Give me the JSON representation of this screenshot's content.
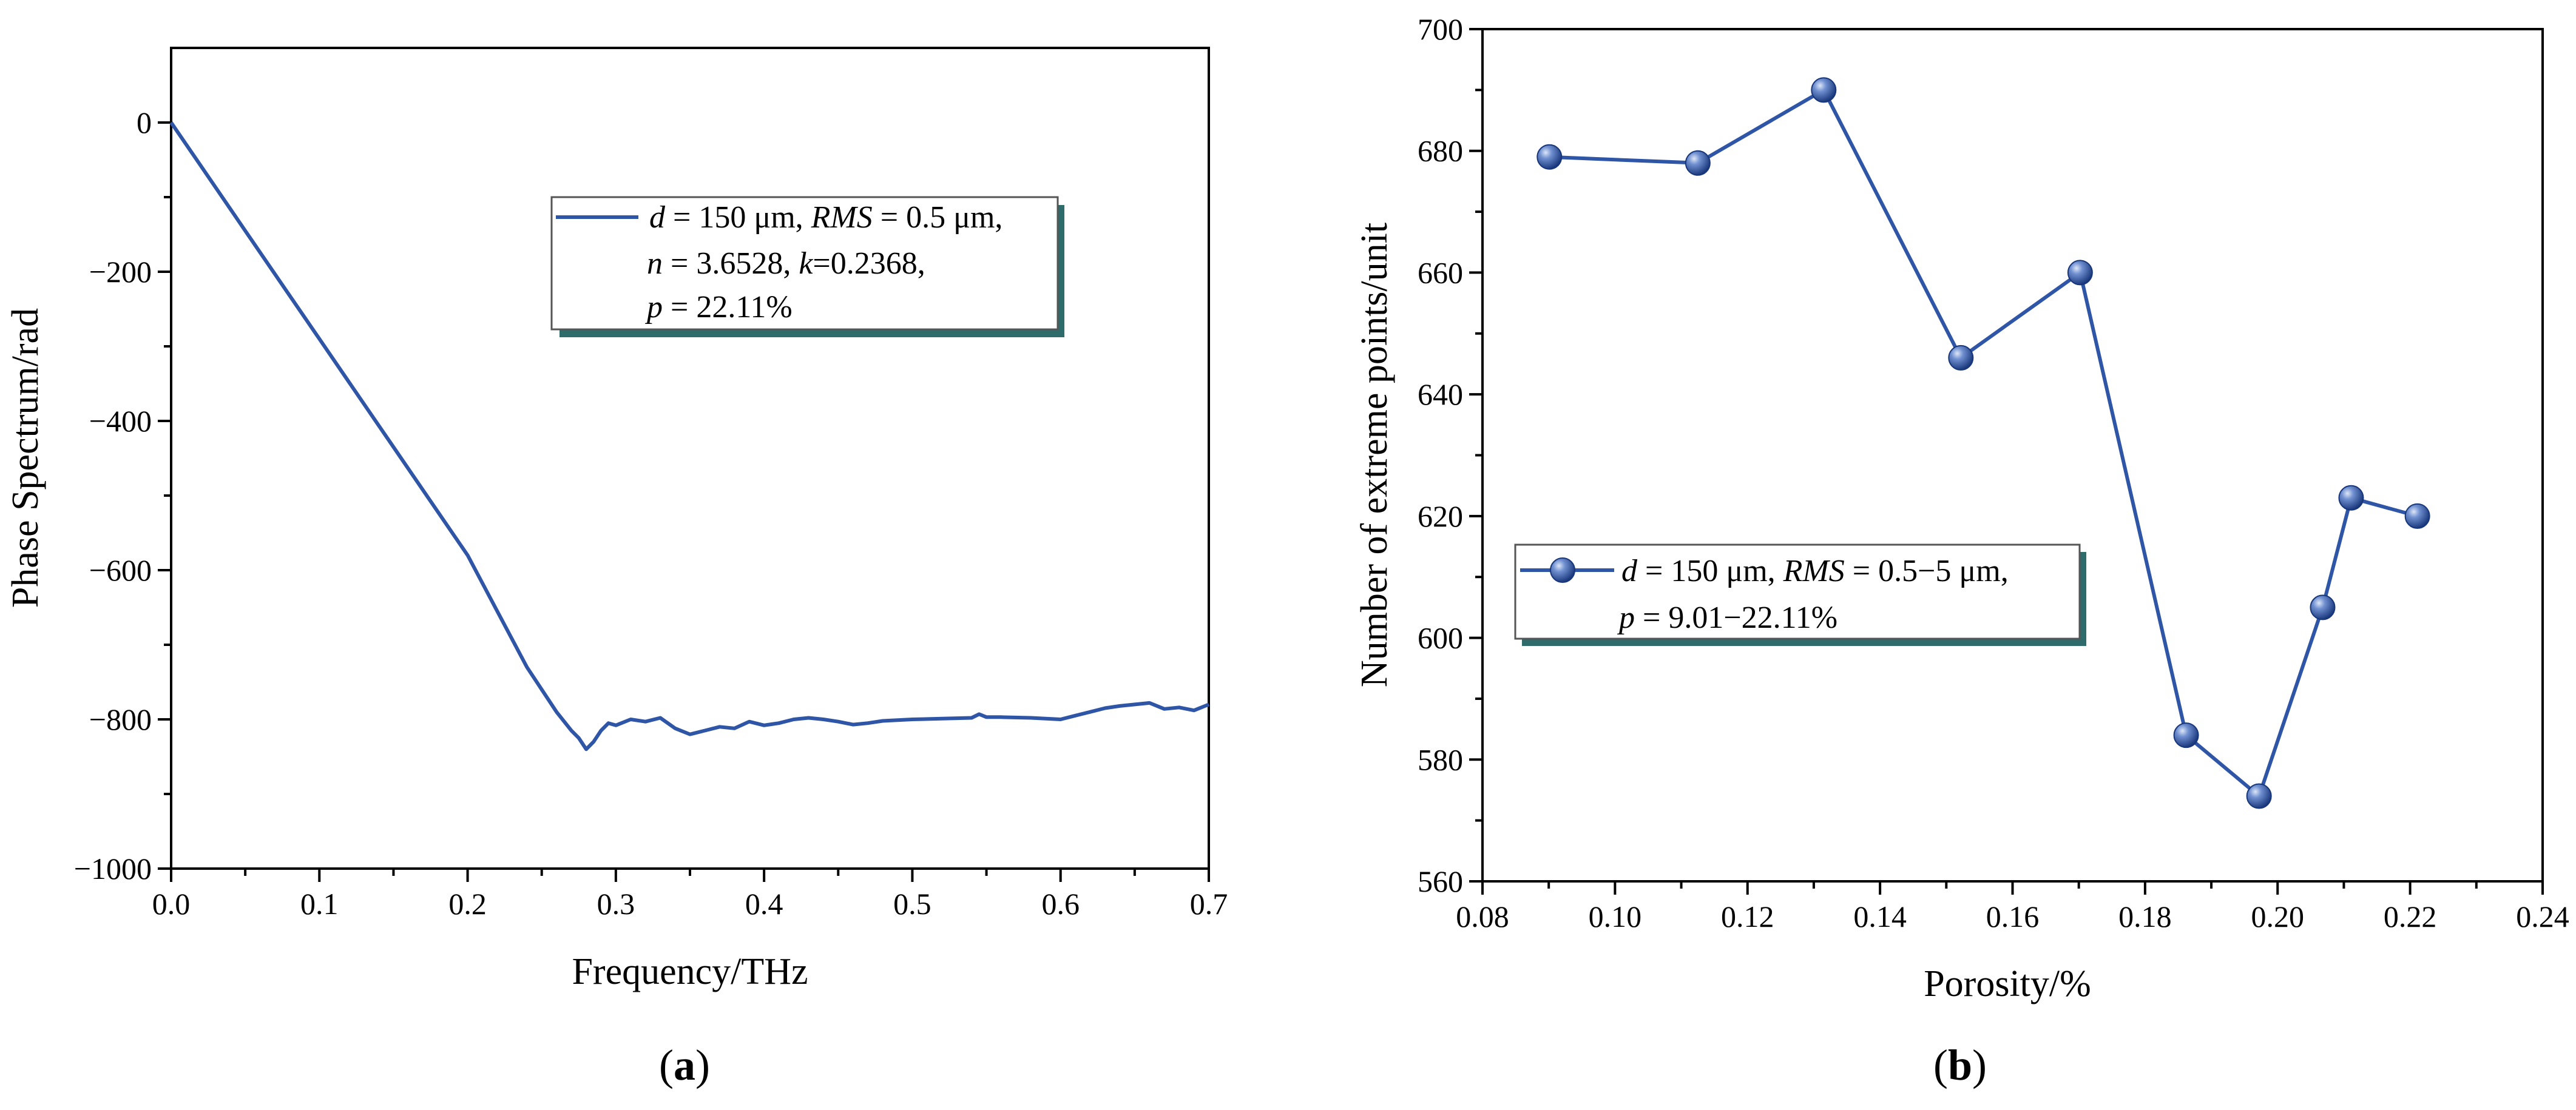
{
  "colors": {
    "series": "#2f56a6",
    "legend_shadow": "#2e6b6b",
    "marker_light": "#c3d2ee",
    "marker_dark": "#18367a"
  },
  "chart_data": [
    {
      "id": "a",
      "type": "line",
      "caption_open": "(",
      "caption_letter": "a",
      "caption_close": ")",
      "xlabel": "Frequency/THz",
      "ylabel": "Phase Spectrum/rad",
      "xlim": [
        0,
        0.7
      ],
      "ylim": [
        -1000,
        100
      ],
      "xticks": [
        0.0,
        0.1,
        0.2,
        0.3,
        0.4,
        0.5,
        0.6,
        0.7
      ],
      "xtick_labels": [
        "0.0",
        "0.1",
        "0.2",
        "0.3",
        "0.4",
        "0.5",
        "0.6",
        "0.7"
      ],
      "yticks": [
        0,
        -200,
        -400,
        -600,
        -800,
        -1000
      ],
      "ytick_labels": [
        "0",
        "−200",
        "−400",
        "−600",
        "−800",
        "−1000"
      ],
      "legend": {
        "line1": {
          "var1": "d",
          "txt1": " = 150 μm, ",
          "var2": "RMS",
          "txt2": " = 0.5 μm,"
        },
        "line2": {
          "var1": "n",
          "txt1": " = 3.6528, ",
          "var2": "k",
          "txt2": "=0.2368,"
        },
        "line3": {
          "var1": "p",
          "txt1": " = 22.11%"
        }
      },
      "series": [
        {
          "name": "d = 150 μm, RMS = 0.5 μm, n = 3.6528, k=0.2368, p = 22.11%",
          "x": [
            0.0,
            0.02,
            0.05,
            0.08,
            0.1,
            0.12,
            0.15,
            0.18,
            0.2,
            0.22,
            0.24,
            0.25,
            0.26,
            0.27,
            0.275,
            0.28,
            0.285,
            0.29,
            0.295,
            0.3,
            0.31,
            0.32,
            0.33,
            0.34,
            0.35,
            0.36,
            0.37,
            0.38,
            0.39,
            0.4,
            0.41,
            0.42,
            0.43,
            0.44,
            0.45,
            0.46,
            0.47,
            0.48,
            0.5,
            0.52,
            0.54,
            0.545,
            0.55,
            0.56,
            0.58,
            0.6,
            0.61,
            0.62,
            0.63,
            0.64,
            0.65,
            0.66,
            0.67,
            0.68,
            0.69,
            0.7
          ],
          "y": [
            0,
            -58,
            -145,
            -232,
            -290,
            -348,
            -435,
            -522,
            -580,
            -655,
            -730,
            -760,
            -790,
            -815,
            -825,
            -840,
            -830,
            -815,
            -805,
            -808,
            -800,
            -803,
            -798,
            -812,
            -820,
            -815,
            -810,
            -812,
            -803,
            -808,
            -805,
            -800,
            -798,
            -800,
            -803,
            -807,
            -805,
            -802,
            -800,
            -799,
            -798,
            -793,
            -797,
            -797,
            -798,
            -800,
            -795,
            -790,
            -785,
            -782,
            -780,
            -778,
            -786,
            -784,
            -788,
            -780
          ]
        }
      ]
    },
    {
      "id": "b",
      "type": "line",
      "caption_open": "(",
      "caption_letter": "b",
      "caption_close": ")",
      "xlabel": "Porosity/%",
      "ylabel": "Number of extreme points/unit",
      "xlim": [
        0.08,
        0.24
      ],
      "ylim": [
        560,
        700
      ],
      "xticks": [
        0.08,
        0.1,
        0.12,
        0.14,
        0.16,
        0.18,
        0.2,
        0.22,
        0.24
      ],
      "xtick_labels": [
        "0.08",
        "0.10",
        "0.12",
        "0.14",
        "0.16",
        "0.18",
        "0.20",
        "0.22",
        "0.24"
      ],
      "yticks": [
        560,
        580,
        600,
        620,
        640,
        660,
        680,
        700
      ],
      "ytick_labels": [
        "560",
        "580",
        "600",
        "620",
        "640",
        "660",
        "680",
        "700"
      ],
      "legend": {
        "line1": {
          "var1": "d",
          "txt1": " = 150 μm, ",
          "var2": "RMS",
          "txt2": " = 0.5−5 μm,"
        },
        "line2": {
          "var1": "p",
          "txt1": " = 9.01−22.11%"
        }
      },
      "series": [
        {
          "name": "d = 150 μm, RMS = 0.5−5 μm, p = 9.01−22.11%",
          "x": [
            0.0901,
            0.1125,
            0.1315,
            0.1522,
            0.1702,
            0.1862,
            0.1972,
            0.2068,
            0.2111,
            0.2211
          ],
          "y": [
            679,
            678,
            690,
            646,
            660,
            584,
            574,
            605,
            623,
            620
          ]
        }
      ]
    }
  ]
}
